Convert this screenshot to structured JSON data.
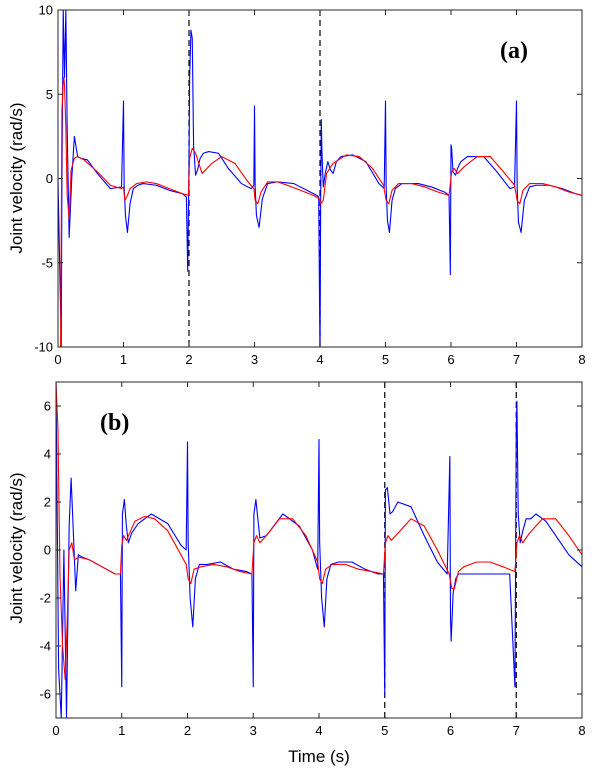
{
  "chart_data": [
    {
      "id": "a",
      "type": "line",
      "panel_label": "(a)",
      "xlabel": "",
      "ylabel": "Joint velocity (rad/s)",
      "xlim": [
        0,
        8
      ],
      "ylim": [
        -10,
        10
      ],
      "xticks": [
        0,
        1,
        2,
        3,
        4,
        5,
        6,
        7,
        8
      ],
      "yticks": [
        -10,
        -5,
        0,
        5,
        10
      ],
      "xtick_labels": [
        "0",
        "1",
        "2",
        "3",
        "4",
        "5",
        "6",
        "7",
        "8"
      ],
      "ytick_labels": [
        "-10",
        "-5",
        "0",
        "5",
        "10"
      ],
      "grid": false,
      "vlines": [
        2,
        4
      ],
      "series": [
        {
          "color": "#0000ff",
          "x": [
            0,
            0.05,
            0.06,
            0.08,
            0.1,
            0.12,
            0.14,
            0.17,
            0.21,
            0.25,
            0.3,
            0.35,
            0.45,
            0.6,
            0.8,
            0.97,
            1.0,
            1.01,
            1.03,
            1.06,
            1.1,
            1.15,
            1.22,
            1.3,
            1.5,
            1.7,
            1.9,
            1.96,
            1.98,
            2.0,
            2.01,
            2.03,
            2.05,
            2.07,
            2.1,
            2.13,
            2.17,
            2.22,
            2.3,
            2.45,
            2.6,
            2.8,
            2.95,
            2.99,
            3.0,
            3.01,
            3.03,
            3.07,
            3.12,
            3.2,
            3.35,
            3.6,
            3.8,
            3.95,
            3.98,
            4.0,
            4.01,
            4.02,
            4.03,
            4.05,
            4.08,
            4.12,
            4.16,
            4.2,
            4.25,
            4.32,
            4.5,
            4.7,
            4.9,
            4.98,
            5.0,
            5.01,
            5.03,
            5.06,
            5.1,
            5.15,
            5.25,
            5.5,
            5.7,
            5.9,
            5.97,
            5.99,
            6.0,
            6.01,
            6.03,
            6.07,
            6.1,
            6.15,
            6.25,
            6.5,
            6.7,
            6.9,
            6.97,
            7.0,
            7.01,
            7.03,
            7.07,
            7.12,
            7.2,
            7.3,
            7.5,
            7.7,
            7.9,
            8.0
          ],
          "y": [
            0,
            -10,
            0,
            10,
            6,
            10,
            3,
            -3.5,
            0,
            2.5,
            1.3,
            1.2,
            1.1,
            0.3,
            -0.6,
            -0.5,
            4.6,
            -0.5,
            -2.2,
            -3.2,
            -1.5,
            -0.6,
            -0.4,
            -0.3,
            -0.4,
            -0.7,
            -0.9,
            -1.1,
            -5.5,
            1,
            6,
            8.8,
            8.3,
            2,
            0.2,
            0.5,
            1.2,
            1.5,
            1.6,
            1.5,
            0.6,
            -0.3,
            -0.6,
            -0.4,
            4.3,
            -0.5,
            -2.2,
            -2.9,
            -1.2,
            -0.3,
            -0.2,
            -0.3,
            -0.7,
            -1.0,
            -1.1,
            -10.5,
            -1.5,
            3.5,
            1.5,
            -0.5,
            0.3,
            1.0,
            0.5,
            0.3,
            1.0,
            1.3,
            1.4,
            1.0,
            -0.3,
            -0.6,
            4.6,
            -0.5,
            -2.5,
            -3.2,
            -1.3,
            -0.6,
            -0.3,
            -0.3,
            -0.5,
            -0.8,
            -1.0,
            -5.7,
            2,
            1.8,
            0.4,
            0.2,
            0.6,
            1.0,
            1.3,
            1.3,
            0.4,
            -0.6,
            -0.5,
            4.6,
            -0.5,
            -2.6,
            -3.2,
            -1.3,
            -0.5,
            -0.4,
            -0.4,
            -0.6,
            -0.9,
            -1.0
          ]
        },
        {
          "color": "#ff0000",
          "x": [
            0,
            0.04,
            0.06,
            0.08,
            0.09,
            0.1,
            0.12,
            0.14,
            0.17,
            0.2,
            0.25,
            0.3,
            0.4,
            0.6,
            0.8,
            0.97,
            1.0,
            1.02,
            1.05,
            1.1,
            1.2,
            1.35,
            1.5,
            1.7,
            1.9,
            1.99,
            2.01,
            2.05,
            2.1,
            2.2,
            2.35,
            2.5,
            2.7,
            2.9,
            2.99,
            3.01,
            3.05,
            3.1,
            3.2,
            3.35,
            3.5,
            3.7,
            3.9,
            3.99,
            4.01,
            4.05,
            4.1,
            4.2,
            4.4,
            4.6,
            4.8,
            4.97,
            5.01,
            5.05,
            5.1,
            5.2,
            5.4,
            5.6,
            5.8,
            5.97,
            6.01,
            6.05,
            6.1,
            6.2,
            6.4,
            6.6,
            6.8,
            6.97,
            7.01,
            7.05,
            7.1,
            7.2,
            7.4,
            7.6,
            7.8,
            8.0
          ],
          "y": [
            -10,
            -10,
            4,
            5.7,
            6,
            5.5,
            3,
            -1,
            -2.4,
            0.5,
            1.2,
            1.3,
            1.1,
            0.4,
            -0.4,
            -0.6,
            -0.5,
            -1.3,
            -1.1,
            -0.6,
            -0.3,
            -0.2,
            -0.3,
            -0.6,
            -0.9,
            -1.0,
            1.2,
            1.8,
            1.5,
            0.3,
            0.9,
            1.3,
            0.9,
            -0.2,
            -0.6,
            -1.3,
            -1.5,
            -0.8,
            -0.2,
            -0.2,
            -0.4,
            -0.7,
            -1.0,
            -1.2,
            -1.5,
            -1.3,
            0.3,
            0.9,
            1.4,
            1.3,
            0.6,
            -0.4,
            -1.3,
            -1.5,
            -0.7,
            -0.3,
            -0.3,
            -0.5,
            -0.8,
            -1.0,
            0.4,
            0.6,
            0.3,
            0.7,
            1.3,
            1.3,
            0.4,
            -0.4,
            -1.3,
            -1.5,
            -0.7,
            -0.3,
            -0.3,
            -0.5,
            -0.8,
            -1.0
          ]
        }
      ]
    },
    {
      "id": "b",
      "type": "line",
      "panel_label": "(b)",
      "xlabel": "Time (s)",
      "ylabel": "Joint velocity (rad/s)",
      "xlim": [
        0,
        8
      ],
      "ylim": [
        -7,
        7
      ],
      "xticks": [
        0,
        1,
        2,
        3,
        4,
        5,
        6,
        7,
        8
      ],
      "yticks": [
        -6,
        -4,
        -2,
        0,
        2,
        4,
        6
      ],
      "xtick_labels": [
        "0",
        "1",
        "2",
        "3",
        "4",
        "5",
        "6",
        "7",
        "8"
      ],
      "ytick_labels": [
        "-6",
        "-4",
        "-2",
        "0",
        "2",
        "4",
        "6"
      ],
      "grid": false,
      "vlines": [
        5,
        7
      ],
      "series": [
        {
          "color": "#0000ff",
          "x": [
            0,
            0.04,
            0.08,
            0.12,
            0.16,
            0.2,
            0.23,
            0.26,
            0.3,
            0.34,
            0.4,
            0.5,
            0.7,
            0.9,
            0.98,
            1.0,
            1.01,
            1.04,
            1.07,
            1.1,
            1.15,
            1.25,
            1.45,
            1.7,
            1.9,
            1.98,
            2.0,
            2.01,
            2.04,
            2.08,
            2.12,
            2.18,
            2.3,
            2.5,
            2.7,
            2.9,
            2.98,
            3.0,
            3.01,
            3.04,
            3.1,
            3.2,
            3.45,
            3.7,
            3.9,
            3.98,
            4.0,
            4.01,
            4.04,
            4.08,
            4.12,
            4.18,
            4.3,
            4.5,
            4.7,
            4.9,
            4.98,
            5.0,
            5.01,
            5.04,
            5.08,
            5.12,
            5.2,
            5.4,
            5.6,
            5.8,
            5.95,
            5.99,
            6.0,
            6.01,
            6.04,
            6.08,
            6.12,
            6.18,
            6.3,
            6.5,
            6.7,
            6.9,
            6.98,
            7.0,
            7.01,
            7.03,
            7.06,
            7.1,
            7.15,
            7.22,
            7.3,
            7.45,
            7.6,
            7.8,
            8.0
          ],
          "y": [
            7,
            -5,
            -7,
            0,
            -7,
            1,
            3,
            1,
            -1.7,
            -0.2,
            -0.3,
            -0.4,
            -0.7,
            -1.0,
            -1.0,
            -5.7,
            1.5,
            2.1,
            1.0,
            0.3,
            0.7,
            1.1,
            1.5,
            1.1,
            0.2,
            0.0,
            4.5,
            0.3,
            -2.0,
            -3.2,
            -1.2,
            -0.6,
            -0.6,
            -0.5,
            -0.8,
            -0.9,
            -1.0,
            -5.7,
            1.5,
            2.1,
            0.5,
            0.6,
            1.5,
            1.0,
            0.0,
            -0.8,
            4.6,
            0.3,
            -2.0,
            -3.2,
            -1.2,
            -0.6,
            -0.5,
            -0.5,
            -0.8,
            -1.0,
            -1.0,
            -6.0,
            2.5,
            2.6,
            1.5,
            1.6,
            2.0,
            1.8,
            0.6,
            -0.5,
            -1.0,
            3.9,
            -2.8,
            -3.8,
            -1.8,
            -1.2,
            -1.0,
            -1.0,
            -1.0,
            -1.0,
            -1.0,
            -1.0,
            -5.7,
            5.0,
            6.2,
            1.5,
            0.3,
            0.8,
            1.3,
            1.3,
            1.5,
            1.2,
            0.6,
            -0.2,
            -0.7
          ]
        },
        {
          "color": "#ff0000",
          "x": [
            0,
            0.03,
            0.06,
            0.1,
            0.14,
            0.17,
            0.2,
            0.24,
            0.28,
            0.35,
            0.5,
            0.7,
            0.9,
            0.98,
            1.0,
            1.03,
            1.07,
            1.12,
            1.2,
            1.35,
            1.5,
            1.7,
            1.9,
            1.98,
            2.01,
            2.05,
            2.1,
            2.2,
            2.4,
            2.6,
            2.8,
            2.98,
            3.01,
            3.05,
            3.1,
            3.2,
            3.4,
            3.6,
            3.8,
            3.98,
            4.01,
            4.05,
            4.1,
            4.2,
            4.4,
            4.6,
            4.8,
            4.98,
            5.01,
            5.05,
            5.1,
            5.2,
            5.4,
            5.6,
            5.8,
            5.98,
            6.02,
            6.06,
            6.12,
            6.2,
            6.4,
            6.6,
            6.8,
            6.98,
            7.01,
            7.05,
            7.1,
            7.2,
            7.4,
            7.6,
            7.8,
            8.0
          ],
          "y": [
            7,
            5,
            -1,
            -4.0,
            -5.4,
            -3.0,
            0,
            0.3,
            -0.4,
            -0.3,
            -0.4,
            -0.7,
            -1.0,
            -1.0,
            0.2,
            0.6,
            0.4,
            0.7,
            1.2,
            1.4,
            1.3,
            0.8,
            -0.2,
            -0.6,
            -1.2,
            -1.4,
            -0.8,
            -0.7,
            -0.6,
            -0.7,
            -0.9,
            -1.0,
            0.3,
            0.6,
            0.3,
            0.6,
            1.3,
            1.3,
            0.6,
            -0.5,
            -1.2,
            -1.4,
            -0.8,
            -0.6,
            -0.6,
            -0.8,
            -0.9,
            -1.0,
            0.3,
            0.6,
            0.4,
            0.7,
            1.3,
            1.0,
            0.0,
            -1.0,
            -1.6,
            -1.6,
            -0.9,
            -0.7,
            -0.5,
            -0.5,
            -0.7,
            -0.9,
            0.3,
            0.6,
            0.3,
            0.7,
            1.3,
            1.3,
            0.6,
            -0.2
          ]
        }
      ]
    }
  ]
}
